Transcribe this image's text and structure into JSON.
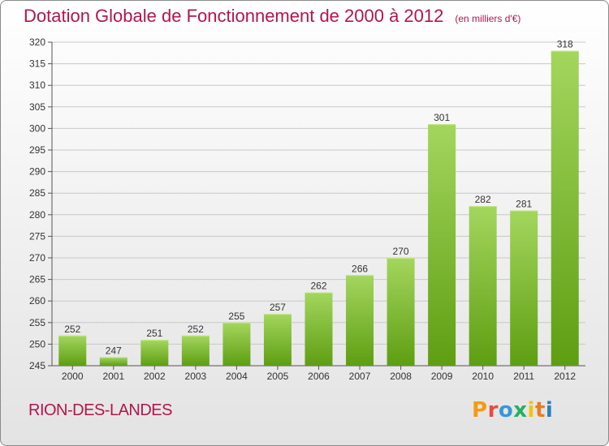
{
  "header": {
    "title": "Dotation Globale de Fonctionnement de 2000 à 2012",
    "unit": "(en milliers d'€)"
  },
  "footer": {
    "commune": "RION-DES-LANDES",
    "brand": "Proxiti",
    "brand_colors": [
      "#f39c12",
      "#e74c3c",
      "#3498db",
      "#27ae60",
      "#f1c40f",
      "#e67e22",
      "#2980b9"
    ]
  },
  "chart_data": {
    "type": "bar",
    "title": "Dotation Globale de Fonctionnement de 2000 à 2012",
    "xlabel": "",
    "ylabel": "",
    "categories": [
      "2000",
      "2001",
      "2002",
      "2003",
      "2004",
      "2005",
      "2006",
      "2007",
      "2008",
      "2009",
      "2010",
      "2011",
      "2012"
    ],
    "values": [
      252,
      247,
      251,
      252,
      255,
      257,
      262,
      266,
      270,
      301,
      282,
      281,
      318
    ],
    "ylim": [
      245,
      320
    ],
    "yticks": [
      245,
      250,
      255,
      260,
      265,
      270,
      275,
      280,
      285,
      290,
      295,
      300,
      305,
      310,
      315,
      320
    ],
    "grid": true,
    "colors": {
      "bar_light": "#a4d65e",
      "bar_dark": "#5e9e12",
      "grid": "#c8c8c8",
      "text": "#333333"
    }
  }
}
